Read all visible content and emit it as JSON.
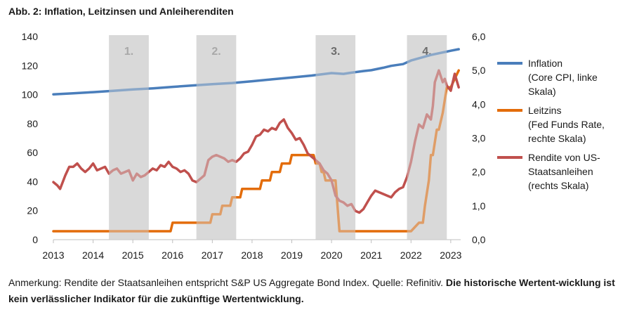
{
  "title": "Abb. 2: Inflation, Leitzinsen und Anleiherenditen",
  "note": {
    "text": "Anmerkung: Rendite der Staatsanleihen entspricht S&P US Aggregate Bond Index. Quelle: Refinitiv.",
    "bold": "Die historische Wertent-wicklung ist kein verlässlicher Indikator für die zukünftige Wertentwicklung."
  },
  "chart_data": {
    "type": "line",
    "title": "Abb. 2: Inflation, Leitzinsen und Anleiherenditen",
    "x_ticks": [
      "2013",
      "2014",
      "2015",
      "2016",
      "2017",
      "2018",
      "2019",
      "2020",
      "2021",
      "2022",
      "2023"
    ],
    "x_range": [
      2013.0,
      2023.25
    ],
    "y_left": {
      "range": [
        0,
        140
      ],
      "ticks": [
        "0",
        "20",
        "40",
        "60",
        "80",
        "100",
        "120",
        "140"
      ]
    },
    "y_right": {
      "range": [
        0,
        6
      ],
      "ticks": [
        "0,0",
        "1,0",
        "2,0",
        "3,0",
        "4,0",
        "5,0",
        "6,0"
      ]
    },
    "phases": [
      {
        "label": "1.",
        "start": 2014.4,
        "end": 2015.4,
        "color": "#808080"
      },
      {
        "label": "2.",
        "start": 2016.6,
        "end": 2017.6,
        "color": "#808080"
      },
      {
        "label": "3.",
        "start": 2019.6,
        "end": 2020.6,
        "color": "#111111"
      },
      {
        "label": "4.",
        "start": 2021.9,
        "end": 2022.9,
        "color": "#111111"
      }
    ],
    "colors": {
      "inflation": "#4a7ebb",
      "fedfunds": "#e36c0a",
      "yield": "#c0504d",
      "shade": "#d9d9d9"
    },
    "series": [
      {
        "name": "Inflation",
        "legend": "Inflation\n(Core CPI, linke\nSkala)",
        "axis": "left",
        "x": [
          2013.0,
          2013.5,
          2014.0,
          2014.5,
          2015.0,
          2015.5,
          2016.0,
          2016.5,
          2017.0,
          2017.5,
          2018.0,
          2018.5,
          2019.0,
          2019.5,
          2020.0,
          2020.3,
          2020.5,
          2020.8,
          2021.0,
          2021.3,
          2021.5,
          2021.8,
          2022.0,
          2022.5,
          2023.0,
          2023.2
        ],
        "values": [
          100.2,
          100.9,
          101.7,
          102.6,
          103.5,
          104.3,
          105.3,
          106.3,
          107.2,
          108.0,
          109.2,
          110.5,
          111.8,
          113.1,
          114.8,
          114.3,
          115.1,
          116.2,
          116.8,
          118.5,
          119.8,
          121.0,
          123.5,
          127.3,
          130.2,
          131.3
        ]
      },
      {
        "name": "Leitzins",
        "legend": "Leitzins\n(Fed Funds Rate,\nrechte Skala)",
        "axis": "right",
        "x": [
          2013.0,
          2015.95,
          2016.0,
          2016.95,
          2017.0,
          2017.2,
          2017.25,
          2017.45,
          2017.5,
          2017.7,
          2017.75,
          2018.2,
          2018.25,
          2018.45,
          2018.5,
          2018.7,
          2018.75,
          2018.95,
          2019.0,
          2019.55,
          2019.6,
          2019.7,
          2019.75,
          2019.8,
          2019.85,
          2020.1,
          2020.2,
          2022.0,
          2022.2,
          2022.3,
          2022.35,
          2022.45,
          2022.5,
          2022.55,
          2022.65,
          2022.7,
          2022.8,
          2022.9,
          2023.0,
          2023.1,
          2023.2
        ],
        "values": [
          0.25,
          0.25,
          0.5,
          0.5,
          0.75,
          0.75,
          1.0,
          1.0,
          1.25,
          1.25,
          1.5,
          1.5,
          1.75,
          1.75,
          2.0,
          2.0,
          2.25,
          2.25,
          2.5,
          2.5,
          2.25,
          2.25,
          2.0,
          2.0,
          1.75,
          1.75,
          0.25,
          0.25,
          0.5,
          0.5,
          1.0,
          1.75,
          2.5,
          2.5,
          3.25,
          3.25,
          3.75,
          4.5,
          4.5,
          4.75,
          5.0
        ]
      },
      {
        "name": "Rendite von US-Staatsanleihen",
        "legend": "Rendite von US-\nStaatsanleihen\n(rechts Skala)",
        "axis": "right",
        "x": [
          2013.0,
          2013.1,
          2013.17,
          2013.3,
          2013.4,
          2013.5,
          2013.6,
          2013.7,
          2013.8,
          2013.9,
          2014.0,
          2014.1,
          2014.2,
          2014.3,
          2014.4,
          2014.5,
          2014.6,
          2014.7,
          2014.8,
          2014.9,
          2015.0,
          2015.1,
          2015.2,
          2015.3,
          2015.4,
          2015.5,
          2015.6,
          2015.7,
          2015.8,
          2015.9,
          2016.0,
          2016.1,
          2016.2,
          2016.3,
          2016.4,
          2016.5,
          2016.6,
          2016.7,
          2016.8,
          2016.9,
          2017.0,
          2017.1,
          2017.2,
          2017.3,
          2017.4,
          2017.5,
          2017.6,
          2017.7,
          2017.8,
          2017.9,
          2018.0,
          2018.1,
          2018.2,
          2018.3,
          2018.4,
          2018.5,
          2018.6,
          2018.7,
          2018.8,
          2018.9,
          2019.0,
          2019.1,
          2019.2,
          2019.3,
          2019.4,
          2019.5,
          2019.6,
          2019.7,
          2019.8,
          2019.9,
          2020.0,
          2020.1,
          2020.2,
          2020.3,
          2020.4,
          2020.5,
          2020.6,
          2020.7,
          2020.8,
          2020.9,
          2021.0,
          2021.1,
          2021.2,
          2021.3,
          2021.4,
          2021.5,
          2021.6,
          2021.7,
          2021.8,
          2021.9,
          2022.0,
          2022.1,
          2022.2,
          2022.3,
          2022.4,
          2022.5,
          2022.55,
          2022.6,
          2022.7,
          2022.8,
          2022.85,
          2022.9,
          2023.0,
          2023.1,
          2023.2
        ],
        "values": [
          1.7,
          1.6,
          1.5,
          1.9,
          2.15,
          2.15,
          2.25,
          2.1,
          2.0,
          2.1,
          2.25,
          2.05,
          2.1,
          2.15,
          1.95,
          2.05,
          2.1,
          1.95,
          2.0,
          2.05,
          1.75,
          1.95,
          1.85,
          1.9,
          2.0,
          2.1,
          2.05,
          2.2,
          2.15,
          2.3,
          2.15,
          2.1,
          2.0,
          2.05,
          1.95,
          1.75,
          1.7,
          1.8,
          1.9,
          2.35,
          2.45,
          2.5,
          2.45,
          2.4,
          2.3,
          2.35,
          2.3,
          2.4,
          2.55,
          2.6,
          2.8,
          3.05,
          3.1,
          3.25,
          3.2,
          3.3,
          3.25,
          3.45,
          3.55,
          3.3,
          3.15,
          2.95,
          3.0,
          2.8,
          2.55,
          2.45,
          2.35,
          2.25,
          2.05,
          1.95,
          1.75,
          1.3,
          1.15,
          1.1,
          1.0,
          1.05,
          0.85,
          0.8,
          0.9,
          1.1,
          1.3,
          1.45,
          1.4,
          1.35,
          1.3,
          1.25,
          1.4,
          1.5,
          1.55,
          1.85,
          2.3,
          2.9,
          3.4,
          3.3,
          3.7,
          3.55,
          3.95,
          4.65,
          5.0,
          4.65,
          4.75,
          4.55,
          4.4,
          4.9,
          4.5
        ]
      }
    ]
  }
}
